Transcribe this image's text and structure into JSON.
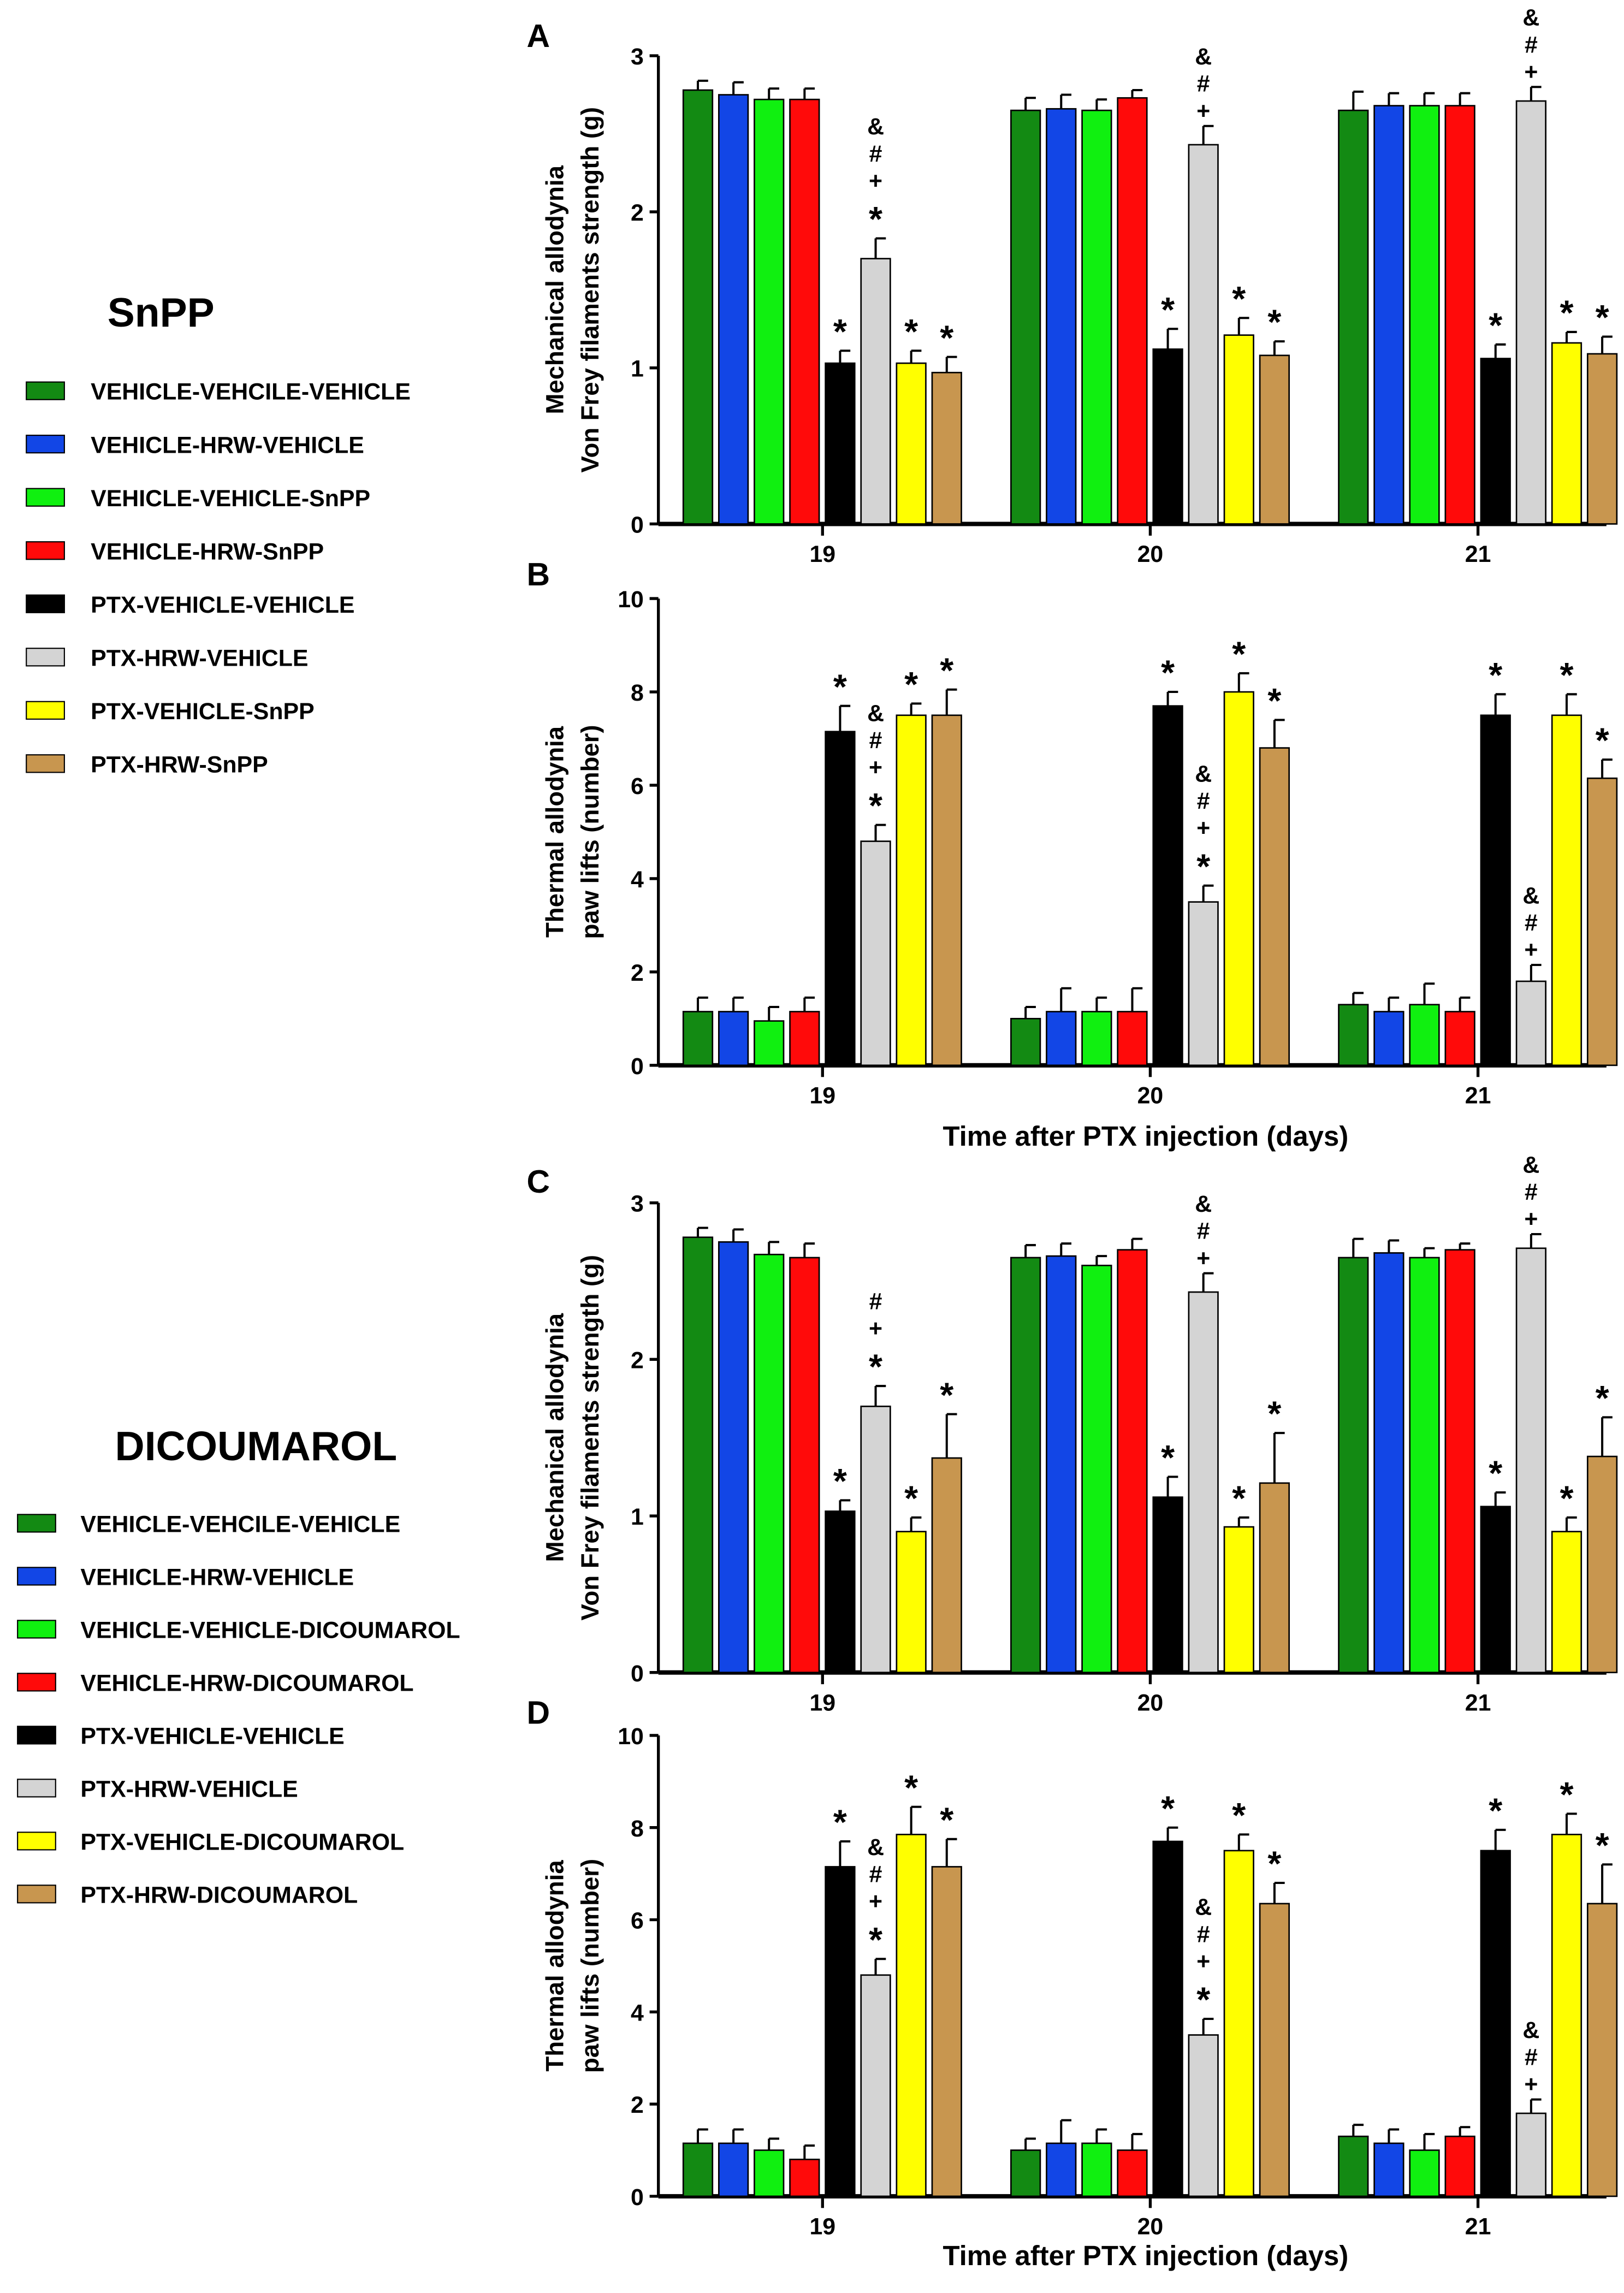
{
  "colors": [
    "#138a13",
    "#1246e6",
    "#10f010",
    "#ff0a0a",
    "#000000",
    "#d4d4d4",
    "#ffff00",
    "#c8964f"
  ],
  "legends": [
    {
      "title": "SnPP",
      "items": [
        "VEHICLE-VEHCILE-VEHICLE",
        "VEHICLE-HRW-VEHICLE",
        "VEHICLE-VEHICLE-SnPP",
        "VEHICLE-HRW-SnPP",
        "PTX-VEHICLE-VEHICLE",
        "PTX-HRW-VEHICLE",
        "PTX-VEHICLE-SnPP",
        "PTX-HRW-SnPP"
      ]
    },
    {
      "title": "DICOUMAROL",
      "items": [
        "VEHICLE-VEHCILE-VEHICLE",
        "VEHICLE-HRW-VEHICLE",
        "VEHICLE-VEHICLE-DICOUMAROL",
        "VEHICLE-HRW-DICOUMAROL",
        "PTX-VEHICLE-VEHICLE",
        "PTX-HRW-VEHICLE",
        "PTX-VEHICLE-DICOUMAROL",
        "PTX-HRW-DICOUMAROL"
      ]
    }
  ],
  "chart_data": [
    {
      "type": "bar",
      "panel": "A",
      "ylabel": [
        "Mechanical allodynia",
        "Von Frey filaments strength (g)"
      ],
      "xlabel": "",
      "ylim": [
        0,
        3
      ],
      "yticks": [
        "0",
        "1",
        "2",
        "3"
      ],
      "categories": [
        "19",
        "20",
        "21"
      ],
      "values": [
        [
          2.78,
          2.75,
          2.72,
          2.72,
          1.03,
          1.7,
          1.03,
          0.97
        ],
        [
          2.65,
          2.66,
          2.65,
          2.73,
          1.12,
          2.43,
          1.21,
          1.08
        ],
        [
          2.65,
          2.68,
          2.68,
          2.68,
          1.06,
          2.71,
          1.16,
          1.09
        ]
      ],
      "errors": [
        [
          0.06,
          0.08,
          0.07,
          0.07,
          0.08,
          0.13,
          0.08,
          0.1
        ],
        [
          0.08,
          0.09,
          0.07,
          0.05,
          0.13,
          0.12,
          0.11,
          0.09
        ],
        [
          0.12,
          0.08,
          0.08,
          0.08,
          0.09,
          0.09,
          0.07,
          0.11
        ]
      ],
      "annotations": [
        [
          "",
          "",
          "",
          "",
          "*",
          "*+#&",
          "*",
          "*"
        ],
        [
          "",
          "",
          "",
          "",
          "*",
          "+#&",
          "*",
          "*"
        ],
        [
          "",
          "",
          "",
          "",
          "*",
          "+#&",
          "*",
          "*"
        ]
      ]
    },
    {
      "type": "bar",
      "panel": "B",
      "ylabel": [
        "Thermal allodynia",
        "paw lifts (number)"
      ],
      "xlabel": "Time after PTX injection (days)",
      "ylim": [
        0,
        10
      ],
      "yticks": [
        "0",
        "2",
        "4",
        "6",
        "8",
        "10"
      ],
      "categories": [
        "19",
        "20",
        "21"
      ],
      "values": [
        [
          1.15,
          1.15,
          0.95,
          1.15,
          7.15,
          4.8,
          7.5,
          7.5
        ],
        [
          1.0,
          1.15,
          1.15,
          1.15,
          7.7,
          3.5,
          8.0,
          6.8
        ],
        [
          1.3,
          1.15,
          1.3,
          1.15,
          7.5,
          1.8,
          7.5,
          6.15
        ]
      ],
      "errors": [
        [
          0.3,
          0.3,
          0.3,
          0.3,
          0.55,
          0.35,
          0.25,
          0.55
        ],
        [
          0.25,
          0.5,
          0.3,
          0.5,
          0.3,
          0.35,
          0.4,
          0.6
        ],
        [
          0.25,
          0.3,
          0.45,
          0.3,
          0.45,
          0.35,
          0.45,
          0.4
        ]
      ],
      "annotations": [
        [
          "",
          "",
          "",
          "",
          "*",
          "*+#&",
          "*",
          "*"
        ],
        [
          "",
          "",
          "",
          "",
          "*",
          "*+#&",
          "*",
          "*"
        ],
        [
          "",
          "",
          "",
          "",
          "*",
          "+#&",
          "*",
          "*"
        ]
      ]
    },
    {
      "type": "bar",
      "panel": "C",
      "ylabel": [
        "Mechanical allodynia",
        "Von Frey filaments strength (g)"
      ],
      "xlabel": "",
      "ylim": [
        0,
        3
      ],
      "yticks": [
        "0",
        "1",
        "2",
        "3"
      ],
      "categories": [
        "19",
        "20",
        "21"
      ],
      "values": [
        [
          2.78,
          2.75,
          2.67,
          2.65,
          1.03,
          1.7,
          0.9,
          1.37
        ],
        [
          2.65,
          2.66,
          2.6,
          2.7,
          1.12,
          2.43,
          0.93,
          1.21
        ],
        [
          2.65,
          2.68,
          2.65,
          2.7,
          1.06,
          2.71,
          0.9,
          1.38
        ]
      ],
      "errors": [
        [
          0.06,
          0.08,
          0.08,
          0.09,
          0.07,
          0.13,
          0.09,
          0.28
        ],
        [
          0.08,
          0.08,
          0.06,
          0.07,
          0.13,
          0.12,
          0.06,
          0.32
        ],
        [
          0.12,
          0.08,
          0.06,
          0.04,
          0.09,
          0.09,
          0.09,
          0.25
        ]
      ],
      "annotations": [
        [
          "",
          "",
          "",
          "",
          "*",
          "*+#",
          "*",
          "*"
        ],
        [
          "",
          "",
          "",
          "",
          "*",
          "+#&",
          "*",
          "*"
        ],
        [
          "",
          "",
          "",
          "",
          "*",
          "+#&",
          "*",
          "*"
        ]
      ]
    },
    {
      "type": "bar",
      "panel": "D",
      "ylabel": [
        "Thermal allodynia",
        "paw lifts (number)"
      ],
      "xlabel": "Time after PTX injection (days)",
      "ylim": [
        0,
        10
      ],
      "yticks": [
        "0",
        "2",
        "4",
        "6",
        "8",
        "10"
      ],
      "categories": [
        "19",
        "20",
        "21"
      ],
      "values": [
        [
          1.15,
          1.15,
          1.0,
          0.8,
          7.15,
          4.8,
          7.85,
          7.15
        ],
        [
          1.0,
          1.15,
          1.15,
          1.0,
          7.7,
          3.5,
          7.5,
          6.35
        ],
        [
          1.3,
          1.15,
          1.0,
          1.3,
          7.5,
          1.8,
          7.85,
          6.35
        ]
      ],
      "errors": [
        [
          0.3,
          0.3,
          0.25,
          0.3,
          0.55,
          0.35,
          0.6,
          0.6
        ],
        [
          0.25,
          0.5,
          0.3,
          0.35,
          0.3,
          0.35,
          0.35,
          0.45
        ],
        [
          0.25,
          0.3,
          0.35,
          0.2,
          0.45,
          0.3,
          0.45,
          0.85
        ]
      ],
      "annotations": [
        [
          "",
          "",
          "",
          "",
          "*",
          "*+#&",
          "*",
          "*"
        ],
        [
          "",
          "",
          "",
          "",
          "*",
          "*+#&",
          "*",
          "*"
        ],
        [
          "",
          "",
          "",
          "",
          "*",
          "+#&",
          "*",
          "*"
        ]
      ]
    }
  ]
}
